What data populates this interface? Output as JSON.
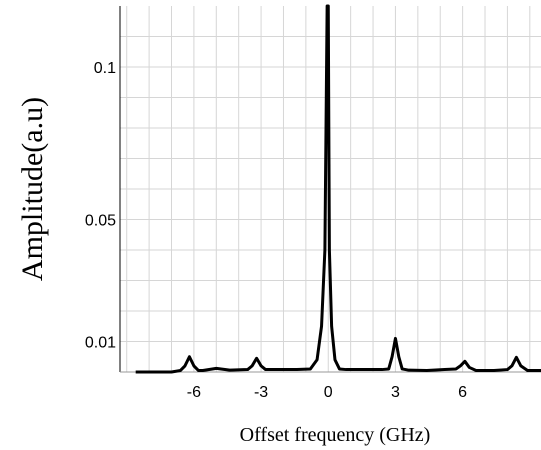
{
  "chart_data": {
    "type": "line",
    "title": "",
    "xlabel": "Offset frequency (GHz)",
    "ylabel": "Amplitude(a.u)",
    "xlim": [
      -9.3,
      9.5
    ],
    "ylim": [
      0.0,
      0.12
    ],
    "grid": true,
    "xticks": [
      -6,
      -3,
      0,
      3,
      6
    ],
    "xtick_labels": [
      "-6",
      "-3",
      "0",
      "3",
      "6"
    ],
    "yticks": [
      0.01,
      0.05,
      0.1
    ],
    "ytick_labels": [
      "0.01",
      "0.05",
      "0.1"
    ],
    "series": [
      {
        "x": [
          -8.6,
          -7.0,
          -6.6,
          -6.4,
          -6.2,
          -6.0,
          -5.8,
          -5.6,
          -5.0,
          -4.4,
          -3.6,
          -3.4,
          -3.2,
          -3.0,
          -2.8,
          -2.6,
          -2.0,
          -1.4,
          -0.8,
          -0.5,
          -0.3,
          -0.15,
          -0.05,
          0.0,
          0.05,
          0.15,
          0.3,
          0.5,
          0.8,
          1.6,
          2.4,
          2.7,
          2.85,
          3.0,
          3.15,
          3.3,
          3.6,
          4.4,
          5.2,
          5.7,
          5.9,
          6.1,
          6.3,
          6.6,
          7.4,
          8.0,
          8.2,
          8.4,
          8.6,
          8.9,
          9.5
        ],
        "y": [
          0.0,
          0.0,
          0.0005,
          0.002,
          0.005,
          0.002,
          0.0005,
          0.0005,
          0.0012,
          0.0006,
          0.0008,
          0.002,
          0.0045,
          0.002,
          0.0008,
          0.0008,
          0.0008,
          0.0008,
          0.001,
          0.004,
          0.015,
          0.04,
          0.12,
          0.12,
          0.04,
          0.015,
          0.004,
          0.001,
          0.0008,
          0.0008,
          0.0008,
          0.001,
          0.005,
          0.011,
          0.005,
          0.001,
          0.0006,
          0.0005,
          0.0008,
          0.001,
          0.002,
          0.0035,
          0.0015,
          0.0005,
          0.0005,
          0.0008,
          0.002,
          0.0048,
          0.002,
          0.0005,
          0.0005
        ]
      }
    ]
  }
}
